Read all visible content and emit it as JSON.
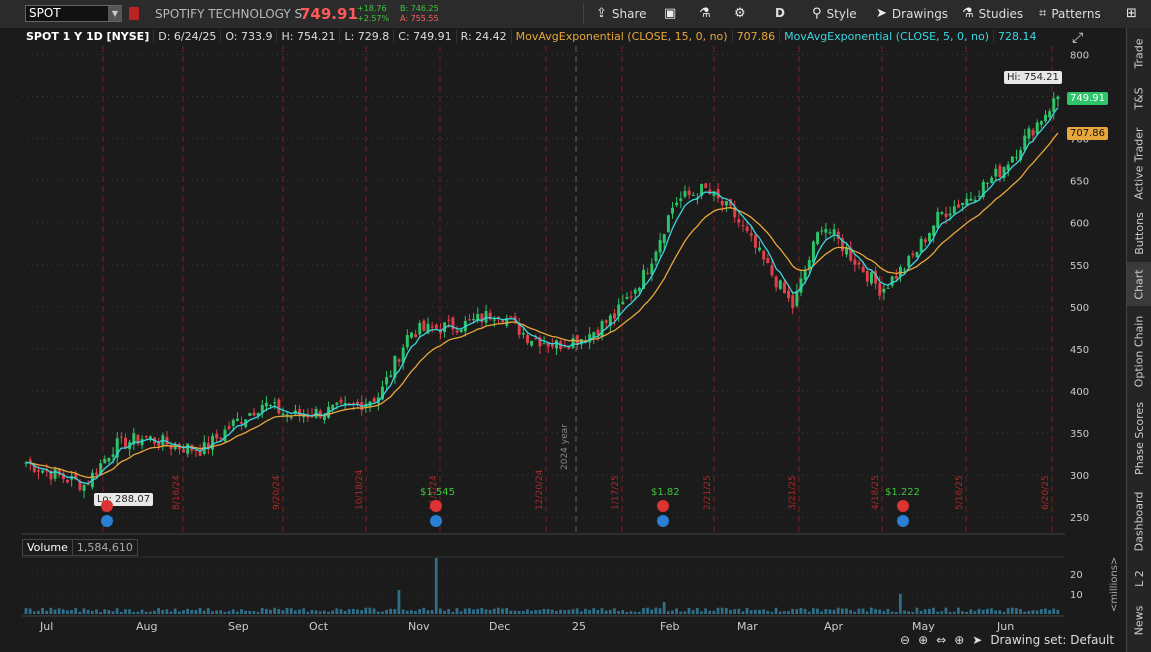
{
  "toolbar": {
    "symbol": "SPOT",
    "company": "SPOTIFY TECHNOLOGY S",
    "last_price": "749.91",
    "change": "+18.76",
    "change_pct": "+2.57%",
    "bid": "B: 746.25",
    "ask": "A: 755.55",
    "share_label": "Share",
    "period_label": "D",
    "style_label": "Style",
    "drawings_label": "Drawings",
    "studies_label": "Studies",
    "patterns_label": "Patterns"
  },
  "infobar": {
    "title": "SPOT 1 Y 1D [NYSE]",
    "date": "D: 6/24/25",
    "open": "O: 733.9",
    "high": "H: 754.21",
    "low": "L: 729.8",
    "close": "C: 749.91",
    "range": "R: 24.42",
    "ema15_label": "MovAvgExponential (CLOSE, 15, 0, no)",
    "ema15_value": "707.86",
    "ema5_label": "MovAvgExponential (CLOSE, 5, 0, no)",
    "ema5_value": "728.14"
  },
  "price_axis": {
    "ticks": [
      "800",
      "750",
      "700",
      "650",
      "600",
      "550",
      "500",
      "450",
      "400",
      "350",
      "300",
      "250"
    ],
    "last_box": "749.91",
    "ema_box": "707.86"
  },
  "annotations": {
    "hi": "Hi: 754.21",
    "lo": "Lo: 288.07",
    "div1": "$1.545",
    "div2": "$1.82",
    "div3": "$1.222",
    "year_marker": "2024 year"
  },
  "event_dates": [
    "8/16/24",
    "9/20/24",
    "10/18/24",
    "11/1/24",
    "12/20/24",
    "1/17/25",
    "2/21/25",
    "3/21/25",
    "4/18/25",
    "5/16/25",
    "6/20/25"
  ],
  "volume": {
    "label": "Volume",
    "value": "1,584,610",
    "ticks": [
      "20",
      "10"
    ],
    "unit": "<millions>"
  },
  "x_axis": [
    "Jul",
    "Aug",
    "Sep",
    "Oct",
    "Nov",
    "Dec",
    "25",
    "Feb",
    "Mar",
    "Apr",
    "May",
    "Jun"
  ],
  "sidebar": [
    "Trade",
    "T&S",
    "Active Trader",
    "Buttons",
    "Chart",
    "Option Chain",
    "Phase Scores",
    "Dashboard",
    "L 2",
    "News"
  ],
  "bottom": {
    "drawing_set": "Drawing set: Default"
  },
  "colors": {
    "up": "#2ec46a",
    "down": "#e0404a",
    "ema5": "#3ad6e0",
    "ema15": "#e8a73a",
    "accent_red": "#ff5a5a"
  },
  "chart_data": {
    "type": "candlestick",
    "ylim": [
      230,
      810
    ],
    "months": [
      "Jul",
      "Aug",
      "Sep",
      "Oct",
      "Nov",
      "Dec",
      "25",
      "Feb",
      "Mar",
      "Apr",
      "May",
      "Jun"
    ],
    "close_trend": [
      [
        "Jul",
        315
      ],
      [
        "Jul",
        300
      ],
      [
        "Jul",
        288
      ],
      [
        "Aug",
        335
      ],
      [
        "Aug",
        345
      ],
      [
        "Aug",
        335
      ],
      [
        "Sep",
        330
      ],
      [
        "Sep",
        360
      ],
      [
        "Sep",
        385
      ],
      [
        "Oct",
        370
      ],
      [
        "Oct",
        375
      ],
      [
        "Oct",
        380
      ],
      [
        "Nov",
        395
      ],
      [
        "Nov",
        470
      ],
      [
        "Nov",
        475
      ],
      [
        "Dec",
        480
      ],
      [
        "Dec",
        495
      ],
      [
        "Dec",
        465
      ],
      [
        "25",
        455
      ],
      [
        "25",
        465
      ],
      [
        "25",
        490
      ],
      [
        "Feb",
        540
      ],
      [
        "Feb",
        625
      ],
      [
        "Feb",
        640
      ],
      [
        "Mar",
        610
      ],
      [
        "Mar",
        555
      ],
      [
        "Mar",
        500
      ],
      [
        "Apr",
        600
      ],
      [
        "Apr",
        560
      ],
      [
        "Apr",
        520
      ],
      [
        "May",
        555
      ],
      [
        "May",
        610
      ],
      [
        "May",
        630
      ],
      [
        "Jun",
        660
      ],
      [
        "Jun",
        705
      ],
      [
        "Jun",
        749.91
      ]
    ],
    "ema15_last": 707.86,
    "ema5_last": 728.14,
    "hi": 754.21,
    "lo": 288.07,
    "volume_ylim": [
      0,
      28
    ],
    "volume_spikes_millions": [
      [
        "Nov",
        12
      ],
      [
        "Nov",
        28
      ],
      [
        "Feb",
        6
      ],
      [
        "May",
        10
      ]
    ]
  }
}
